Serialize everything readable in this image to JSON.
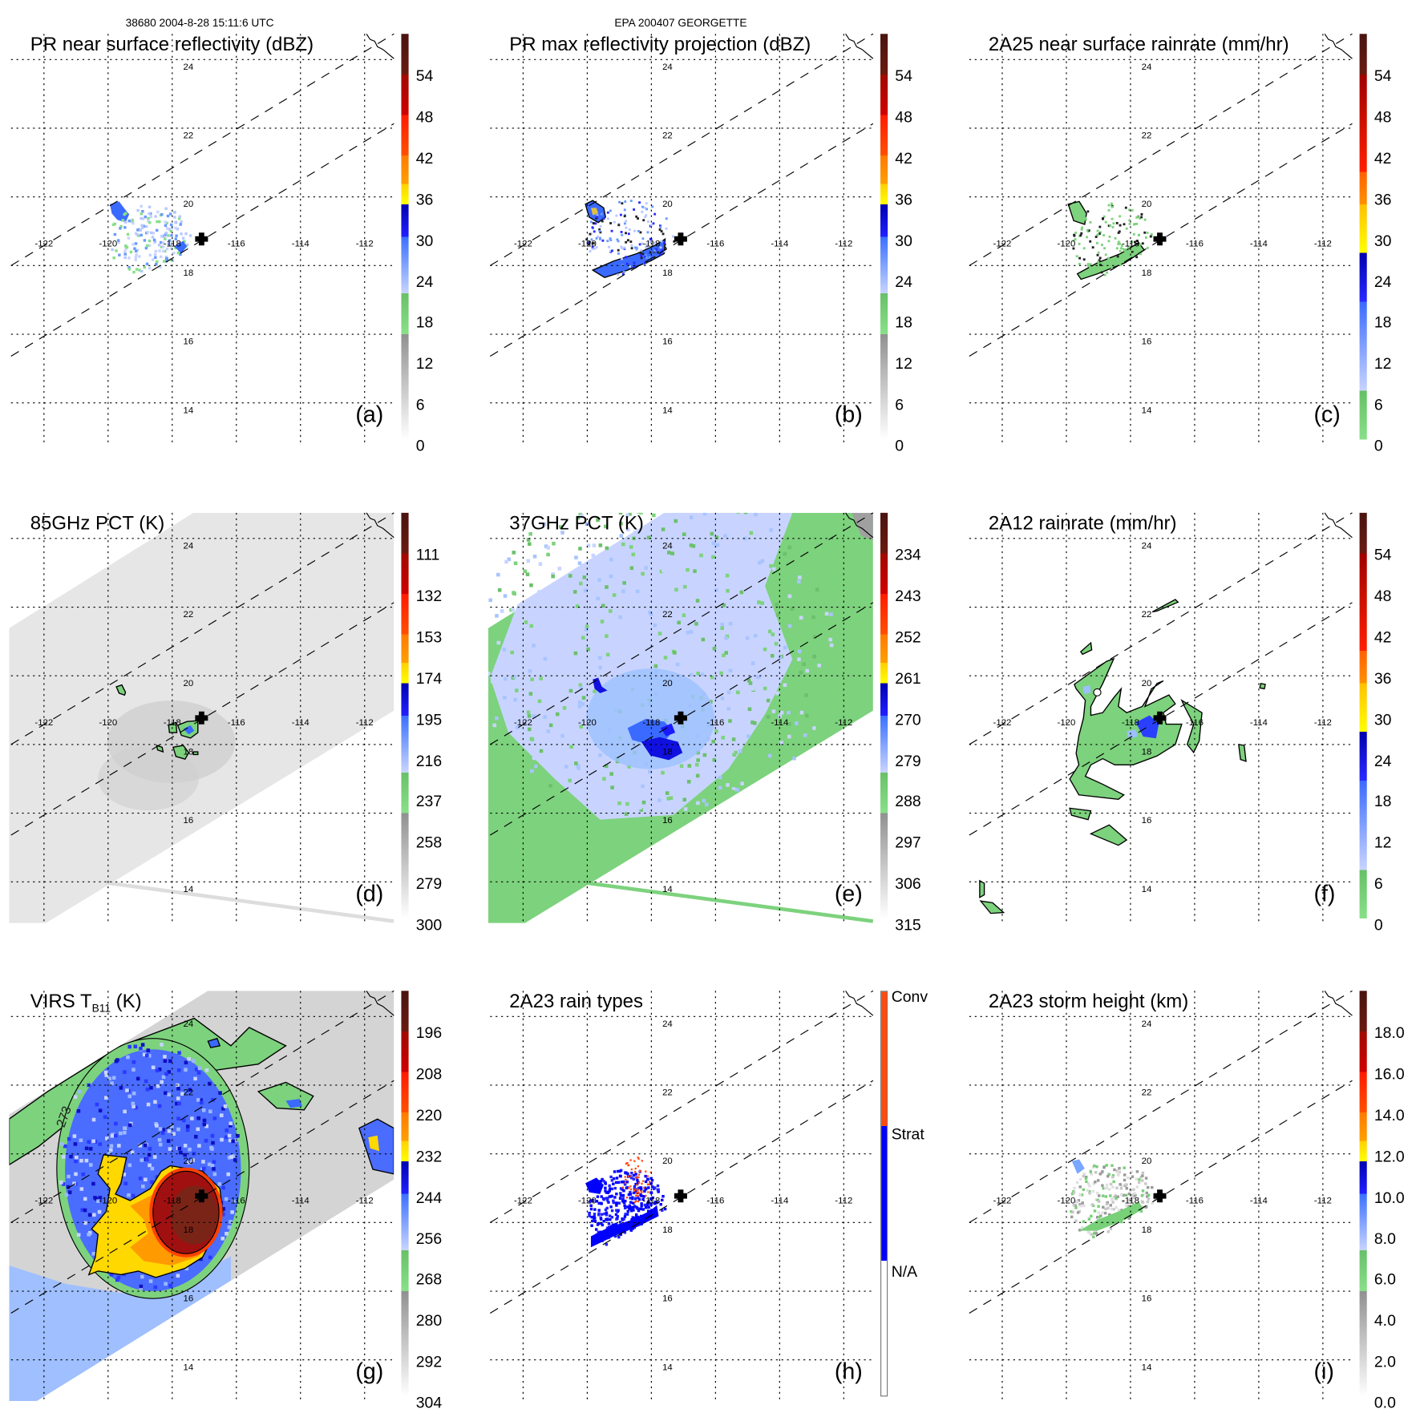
{
  "header": {
    "orbit_time": "38680 2004-8-28 15:11:6 UTC",
    "storm": "EPA 200407 GEORGETTE"
  },
  "map": {
    "lat_labels": [
      "24",
      "22",
      "20",
      "18",
      "16",
      "14"
    ],
    "lon_labels": [
      "-122",
      "-120",
      "-118",
      "-116",
      "-114",
      "-112"
    ]
  },
  "panels": [
    {
      "letter": "(a)",
      "title": "PR near surface reflectivity (dBZ)",
      "scheme": "standard",
      "ticks": [
        "54",
        "48",
        "42",
        "36",
        "30",
        "24",
        "18",
        "12",
        "6",
        "0"
      ]
    },
    {
      "letter": "(b)",
      "title": "PR max reflectivity projection (dBZ)",
      "scheme": "standard",
      "ticks": [
        "54",
        "48",
        "42",
        "36",
        "30",
        "24",
        "18",
        "12",
        "6",
        "0"
      ]
    },
    {
      "letter": "(c)",
      "title": "2A25 near surface rainrate (mm/hr)",
      "scheme": "rain",
      "ticks": [
        "54",
        "48",
        "42",
        "36",
        "30",
        "24",
        "18",
        "12",
        "6",
        "0"
      ]
    },
    {
      "letter": "(d)",
      "title": "85GHz PCT (K)",
      "scheme": "standard",
      "ticks": [
        "111",
        "132",
        "153",
        "174",
        "195",
        "216",
        "237",
        "258",
        "279",
        "300"
      ]
    },
    {
      "letter": "(e)",
      "title": "37GHz PCT (K)",
      "scheme": "standard",
      "ticks": [
        "234",
        "243",
        "252",
        "261",
        "270",
        "279",
        "288",
        "297",
        "306",
        "315"
      ]
    },
    {
      "letter": "(f)",
      "title": "2A12 rainrate (mm/hr)",
      "scheme": "rain",
      "ticks": [
        "54",
        "48",
        "42",
        "36",
        "30",
        "24",
        "18",
        "12",
        "6",
        "0"
      ]
    },
    {
      "letter": "(g)",
      "title": "VIRS T",
      "title_sub": "B11",
      "title_suffix": " (K)",
      "scheme": "standard",
      "contour_label": "273",
      "ticks": [
        "196",
        "208",
        "220",
        "232",
        "244",
        "256",
        "268",
        "280",
        "292",
        "304"
      ]
    },
    {
      "letter": "(h)",
      "title": "2A23 rain types",
      "scheme": "categorical",
      "ticks": [
        "Conv",
        "Strat",
        "N/A"
      ]
    },
    {
      "letter": "(i)",
      "title": "2A23 storm height (km)",
      "scheme": "standard",
      "ticks": [
        "18.0",
        "16.0",
        "14.0",
        "12.0",
        "10.0",
        "8.0",
        "6.0",
        "4.0",
        "2.0",
        "0.0"
      ]
    }
  ],
  "colors": {
    "conv": "#ff4a10",
    "strat": "#0000ff",
    "rain_green": "#7dd27d",
    "light_blue": "#c8d4ff",
    "blue": "#3a6aff",
    "dark_blue": "#1010e0",
    "cold_red": "#a01010"
  }
}
